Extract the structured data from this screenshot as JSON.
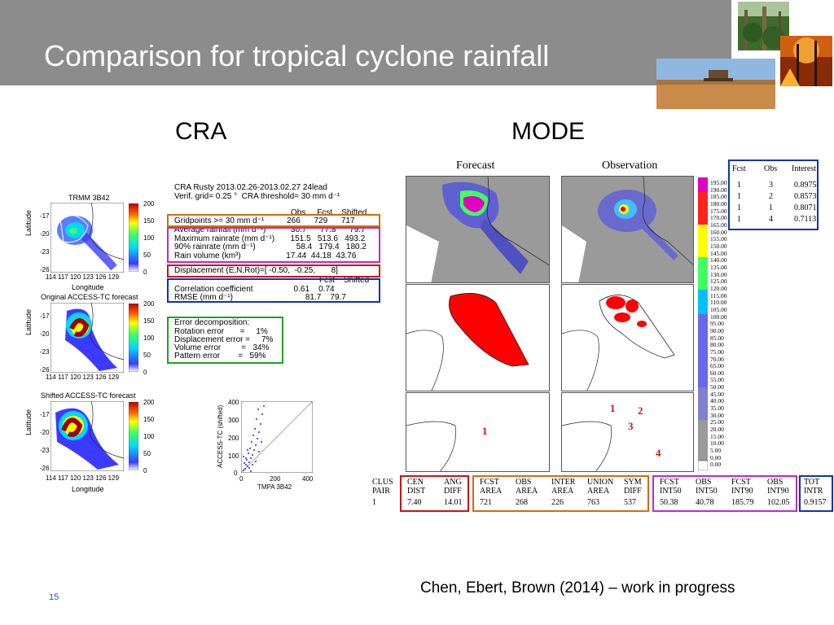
{
  "title": "Comparison for tropical cyclone rainfall",
  "headings": {
    "cra": "CRA",
    "mode": "MODE"
  },
  "cra_panels": [
    {
      "title": "TRMM 3B42",
      "colorbar": [
        "200",
        "150",
        "100",
        "50",
        "0"
      ]
    },
    {
      "title": "Original ACCESS-TC forecast",
      "colorbar": [
        "200",
        "150",
        "100",
        "50",
        "0"
      ]
    },
    {
      "title": "Shifted ACCESS-TC forecast",
      "colorbar": [
        "200",
        "150",
        "100",
        "50",
        "0"
      ]
    }
  ],
  "map_axes": {
    "ylabel": "Latitude",
    "xlabel": "Longitude",
    "lat_ticks": [
      "-17",
      "-20",
      "-23",
      "-26"
    ],
    "lon_ticks": "114 117 120 123 126 129"
  },
  "cra_stats": {
    "header1": "CRA Rusty 2013.02.26-2013.02.27 24lead",
    "header2": "Verif. grid= 0.25 °  CRA threshold= 30 mm d⁻¹",
    "cols": "Obs     Fcst    Shifted",
    "gridpoints": "Gridpoints >= 30 mm d⁻¹          266      729      717",
    "avg": "Average rainfall (mm d⁻¹)           30.7      77.8      79.7",
    "max": "Maximum rainrate (mm d⁻¹)       151.5   513.6   493.2",
    "p90": "90% rainrate (mm d⁻¹)                  58.4   179.4   180.2",
    "volume": "Rain volume (km³)                    17.44  44.18  43.76",
    "displacement": "Displacement (E,N,Rot)=[ -0.50,  -0.25,       8]",
    "cols2": "Fcst    Shifted",
    "corr": "Correlation coefficient                  0.61    0.74",
    "rmse": "RMSE (mm d⁻¹)                                81.7    79.7",
    "err_title": "Error decomposition:",
    "err_rot": "Rotation error       =     1%",
    "err_disp": "Displacement error =     7%",
    "err_vol": "Volume error         =   34%",
    "err_pat": "Pattern error        =   59%"
  },
  "scatter": {
    "ylabel": "ACCESS-TC (shifted)",
    "xlabel": "TMPA 3B42",
    "yticks": [
      "400",
      "300",
      "200",
      "100",
      "0"
    ],
    "xticks": [
      "0",
      "200",
      "400"
    ]
  },
  "mode": {
    "forecast_label": "Forecast",
    "observation_label": "Observation",
    "object_labels": [
      "1",
      "2",
      "3",
      "4",
      "1"
    ],
    "interest_table": {
      "headers": [
        "Fcst",
        "Obs",
        "Interest"
      ],
      "rows": [
        [
          "1",
          "3",
          "0.8975"
        ],
        [
          "1",
          "2",
          "0.8573"
        ],
        [
          "1",
          "1",
          "0.8071"
        ],
        [
          "1",
          "4",
          "0.7113"
        ]
      ]
    },
    "legend": [
      "195.00",
      "190.00",
      "185.00",
      "180.00",
      "175.00",
      "170.00",
      "165.00",
      "160.00",
      "155.00",
      "150.00",
      "145.00",
      "140.00",
      "135.00",
      "130.00",
      "125.00",
      "120.00",
      "115.00",
      "110.00",
      "105.00",
      "100.00",
      "95.00",
      "90.00",
      "85.00",
      "80.00",
      "75.00",
      "70.00",
      "65.00",
      "60.00",
      "55.00",
      "50.00",
      "45.00",
      "40.00",
      "35.00",
      "30.00",
      "25.00",
      "20.00",
      "15.00",
      "10.00",
      "5.00",
      "0.00",
      "0.00"
    ],
    "bottom_table": {
      "clus": [
        "CLUS",
        "PAIR",
        "1"
      ],
      "cen": [
        "CEN",
        "DIST",
        "7.40"
      ],
      "ang": [
        "ANG",
        "DIFF",
        "14.01"
      ],
      "fcst_area": [
        "FCST",
        "AREA",
        "721"
      ],
      "obs_area": [
        "OBS",
        "AREA",
        "268"
      ],
      "inter_area": [
        "INTER",
        "AREA",
        "226"
      ],
      "union_area": [
        "UNION",
        "AREA",
        "763"
      ],
      "sym_diff": [
        "SYM",
        "DIFF",
        "537"
      ],
      "fcst_int50": [
        "FCST",
        "INT50",
        "50.38"
      ],
      "obs_int50": [
        "OBS",
        "INT50",
        "40.78"
      ],
      "fcst_int90": [
        "FCST",
        "INT90",
        "185.79"
      ],
      "obs_int90": [
        "OBS",
        "INT90",
        "102.05"
      ],
      "tot_intr": [
        "TOT",
        "INTR",
        "0.9157"
      ]
    }
  },
  "citation": "Chen, Ebert, Brown (2014) – work in progress",
  "page_number": "15"
}
